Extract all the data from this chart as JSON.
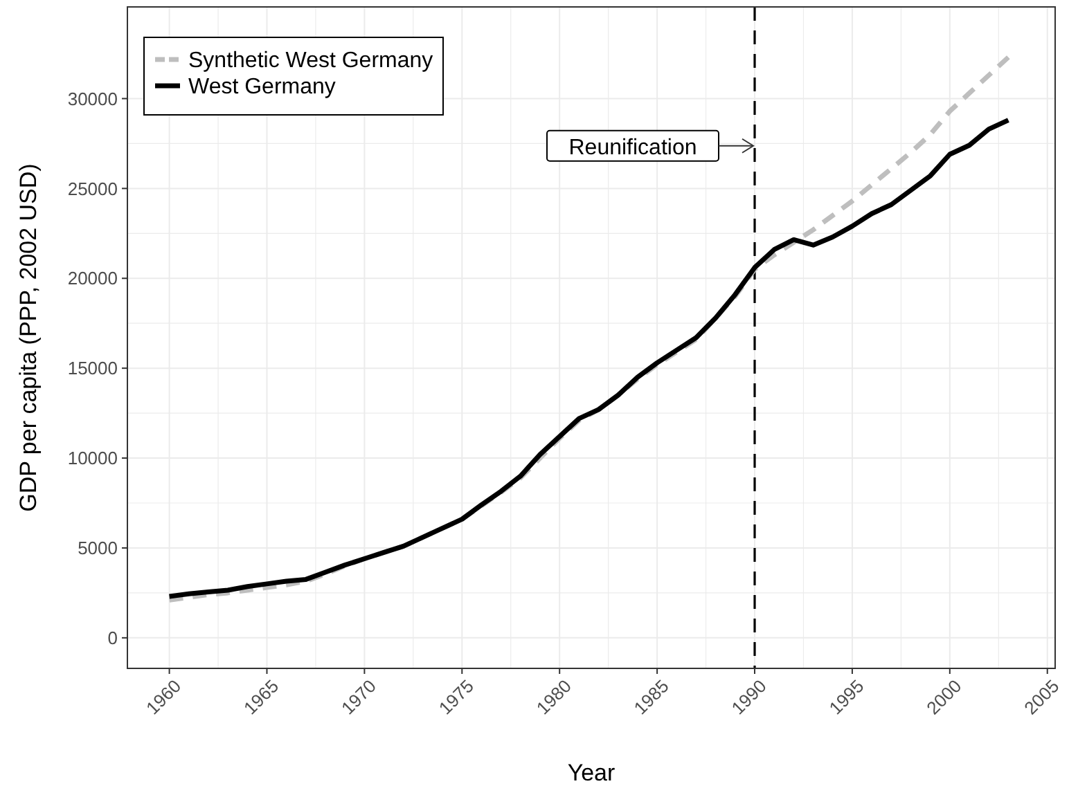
{
  "chart_data": {
    "type": "line",
    "xlabel": "Year",
    "ylabel": "GDP per capita (PPP, 2002 USD)",
    "x": [
      1960,
      1961,
      1962,
      1963,
      1964,
      1965,
      1966,
      1967,
      1968,
      1969,
      1970,
      1971,
      1972,
      1973,
      1974,
      1975,
      1976,
      1977,
      1978,
      1979,
      1980,
      1981,
      1982,
      1983,
      1984,
      1985,
      1986,
      1987,
      1988,
      1989,
      1990,
      1991,
      1992,
      1993,
      1994,
      1995,
      1996,
      1997,
      1998,
      1999,
      2000,
      2001,
      2002,
      2003
    ],
    "series": [
      {
        "name": "Synthetic West Germany",
        "color": "#bebebe",
        "line_style": "dashed",
        "values": [
          2100,
          2250,
          2400,
          2500,
          2650,
          2800,
          2950,
          3150,
          3550,
          4000,
          4400,
          4750,
          5100,
          5600,
          6100,
          6600,
          7350,
          8100,
          8900,
          10000,
          11100,
          12100,
          12700,
          13500,
          14400,
          15200,
          15900,
          16600,
          17800,
          19000,
          20500,
          21300,
          22000,
          22700,
          23500,
          24300,
          25200,
          26100,
          27000,
          28000,
          29300,
          30300,
          31300,
          32300
        ]
      },
      {
        "name": "West Germany",
        "color": "#000000",
        "line_style": "solid",
        "values": [
          2300,
          2450,
          2550,
          2650,
          2850,
          3000,
          3150,
          3250,
          3650,
          4050,
          4400,
          4750,
          5100,
          5600,
          6100,
          6600,
          7400,
          8150,
          9000,
          10200,
          11200,
          12200,
          12700,
          13500,
          14500,
          15300,
          16000,
          16700,
          17800,
          19100,
          20600,
          21600,
          22150,
          21850,
          22300,
          22900,
          23600,
          24100,
          24900,
          25700,
          26900,
          27400,
          28300,
          28800
        ]
      }
    ],
    "xlim": [
      1957.85,
      2005.4
    ],
    "xticks": [
      1960,
      1965,
      1970,
      1975,
      1980,
      1985,
      1990,
      1995,
      2000,
      2005
    ],
    "ylim": [
      -1700,
      35100
    ],
    "yticks": [
      0,
      5000,
      10000,
      15000,
      20000,
      25000,
      30000
    ],
    "grid": true,
    "legend": "top left",
    "ref_lines": [
      {
        "axis": "x",
        "value": 1990,
        "label": "Reunification",
        "color": "#000000",
        "line_style": "dashed"
      }
    ]
  }
}
